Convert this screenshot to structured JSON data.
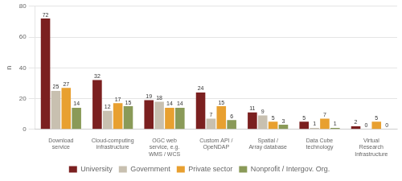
{
  "chart_data": {
    "type": "bar",
    "categories": [
      "Download\nservice",
      "Cloud-computing\ninfrastructure",
      "OGC web\nservice, e.g.\nWMS / WCS",
      "Custom API /\nOpeNDAP",
      "Spatial /\nArray database",
      "Data Cube\ntechnology",
      "Virtual\nResearch\nInfrastructure"
    ],
    "series": [
      {
        "name": "University",
        "color": "#7B2020",
        "values": [
          72,
          32,
          19,
          24,
          11,
          5,
          2
        ]
      },
      {
        "name": "Government",
        "color": "#C8C0B0",
        "values": [
          25,
          12,
          18,
          7,
          9,
          1,
          0
        ]
      },
      {
        "name": "Private sector",
        "color": "#E8A030",
        "values": [
          27,
          17,
          14,
          15,
          5,
          7,
          5
        ]
      },
      {
        "name": "Nonprofit / Intergov. Org.",
        "color": "#8A9A58",
        "values": [
          14,
          15,
          14,
          6,
          3,
          1,
          0
        ]
      }
    ],
    "ylabel": "n",
    "ylim": [
      0,
      80
    ],
    "yticks": [
      0,
      20,
      40,
      60,
      80
    ],
    "grid": true,
    "legend": "bottom",
    "data_labels": true
  }
}
